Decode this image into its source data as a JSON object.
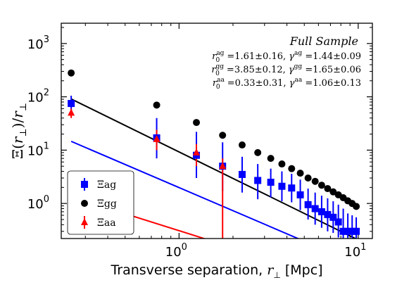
{
  "chart_data": {
    "type": "scatter",
    "x_scale": "log",
    "y_scale": "log",
    "xlim": [
      0.22,
      12
    ],
    "ylim": [
      0.22,
      2400
    ],
    "xlabel": "Transverse separation, r_⊥ [Mpc]",
    "xlabel_text": "Transverse separation, ",
    "xlabel_var": "r",
    "xlabel_sub": "⊥",
    "xlabel_unit": " [Mpc]",
    "ylabel": "Ξ(r_⊥)/r_⊥",
    "y_ticks": [
      {
        "value": 1,
        "base": "10",
        "exp": "0"
      },
      {
        "value": 10,
        "base": "10",
        "exp": "1"
      },
      {
        "value": 100,
        "base": "10",
        "exp": "2"
      },
      {
        "value": 1000,
        "base": "10",
        "exp": "3"
      }
    ],
    "x_ticks": [
      {
        "value": 1,
        "base": "10",
        "exp": "0"
      },
      {
        "value": 10,
        "base": "10",
        "exp": "1"
      }
    ],
    "annotation": {
      "title": "Full Sample",
      "lines": [
        {
          "r_sym": "r",
          "r_sup": "ag",
          "r_sub": "0",
          "r_val": " =1.61±0.16, ",
          "g_sym": "γ",
          "g_sup": "ag",
          "g_val": " =1.44±0.09"
        },
        {
          "r_sym": "r",
          "r_sup": "gg",
          "r_sub": "0",
          "r_val": " =3.85±0.12, ",
          "g_sym": "γ",
          "g_sup": "gg",
          "g_val": " =1.65±0.06"
        },
        {
          "r_sym": "r",
          "r_sup": "aa",
          "r_sub": "0",
          "r_val": " =0.33±0.31, ",
          "g_sym": "γ",
          "g_sup": "aa",
          "g_val": " =1.06±0.13"
        }
      ]
    },
    "legend_position": "lower-left",
    "series": [
      {
        "name": "Ξag",
        "color": "#0000ff",
        "marker": "square",
        "fit": {
          "r0": 1.61,
          "gamma": 1.44,
          "x_range": [
            0.25,
            10
          ]
        },
        "points": [
          {
            "x": 0.25,
            "y": 75,
            "ylo": 55,
            "yhi": 105
          },
          {
            "x": 0.75,
            "y": 17,
            "ylo": 7,
            "yhi": 40
          },
          {
            "x": 1.25,
            "y": 8,
            "ylo": 3,
            "yhi": 22
          },
          {
            "x": 1.75,
            "y": 5,
            "ylo": 1.7,
            "yhi": 14
          },
          {
            "x": 2.25,
            "y": 3.5,
            "ylo": 1.6,
            "yhi": 7.5
          },
          {
            "x": 2.75,
            "y": 2.7,
            "ylo": 1.2,
            "yhi": 5.5
          },
          {
            "x": 3.25,
            "y": 2.5,
            "ylo": 1.3,
            "yhi": 4.5
          },
          {
            "x": 3.75,
            "y": 2.1,
            "ylo": 1.1,
            "yhi": 4.0
          },
          {
            "x": 4.25,
            "y": 1.95,
            "ylo": 1.05,
            "yhi": 3.6
          },
          {
            "x": 4.75,
            "y": 1.45,
            "ylo": 0.75,
            "yhi": 2.8
          },
          {
            "x": 5.25,
            "y": 0.95,
            "ylo": 0.5,
            "yhi": 1.9
          },
          {
            "x": 5.75,
            "y": 0.8,
            "ylo": 0.4,
            "yhi": 1.6
          },
          {
            "x": 6.25,
            "y": 0.7,
            "ylo": 0.35,
            "yhi": 1.4
          },
          {
            "x": 6.75,
            "y": 0.62,
            "ylo": 0.3,
            "yhi": 1.25
          },
          {
            "x": 7.25,
            "y": 0.55,
            "ylo": 0.28,
            "yhi": 1.1
          },
          {
            "x": 7.75,
            "y": 0.45,
            "ylo": 0.23,
            "yhi": 0.95
          },
          {
            "x": 8.25,
            "y": 0.3,
            "ylo": 0.22,
            "yhi": 0.8
          },
          {
            "x": 8.75,
            "y": 0.3,
            "ylo": 0.22,
            "yhi": 0.65
          },
          {
            "x": 9.25,
            "y": 0.3,
            "ylo": 0.22,
            "yhi": 0.6
          },
          {
            "x": 9.75,
            "y": 0.3,
            "ylo": 0.22,
            "yhi": 0.55
          }
        ]
      },
      {
        "name": "Ξgg",
        "color": "#000000",
        "marker": "circle",
        "fit": {
          "r0": 3.85,
          "gamma": 1.65,
          "x_range": [
            0.25,
            10
          ]
        },
        "points": [
          {
            "x": 0.25,
            "y": 280
          },
          {
            "x": 0.75,
            "y": 70
          },
          {
            "x": 1.25,
            "y": 33
          },
          {
            "x": 1.75,
            "y": 19
          },
          {
            "x": 2.25,
            "y": 12.5
          },
          {
            "x": 2.75,
            "y": 9
          },
          {
            "x": 3.25,
            "y": 7
          },
          {
            "x": 3.75,
            "y": 5.5
          },
          {
            "x": 4.25,
            "y": 4.5
          },
          {
            "x": 4.75,
            "y": 3.7
          },
          {
            "x": 5.25,
            "y": 3.0
          },
          {
            "x": 5.75,
            "y": 2.6
          },
          {
            "x": 6.25,
            "y": 2.2
          },
          {
            "x": 6.75,
            "y": 1.9
          },
          {
            "x": 7.25,
            "y": 1.65
          },
          {
            "x": 7.75,
            "y": 1.45
          },
          {
            "x": 8.25,
            "y": 1.28
          },
          {
            "x": 8.75,
            "y": 1.12
          },
          {
            "x": 9.25,
            "y": 1.0
          },
          {
            "x": 9.75,
            "y": 0.88
          }
        ]
      },
      {
        "name": "Ξaa",
        "color": "#ff0000",
        "marker": "triangle",
        "fit": {
          "r0": 0.33,
          "gamma": 1.06,
          "x_range": [
            0.25,
            1.75
          ]
        },
        "points": [
          {
            "x": 0.25,
            "y": 50,
            "ylo": 40,
            "yhi": 60
          },
          {
            "x": 0.75,
            "y": 16,
            "ylo": 10,
            "yhi": 24
          },
          {
            "x": 1.25,
            "y": 9,
            "ylo": 5,
            "yhi": 13
          },
          {
            "x": 1.75,
            "y": 5,
            "ylo": 0.22,
            "yhi": 7
          }
        ]
      }
    ]
  }
}
